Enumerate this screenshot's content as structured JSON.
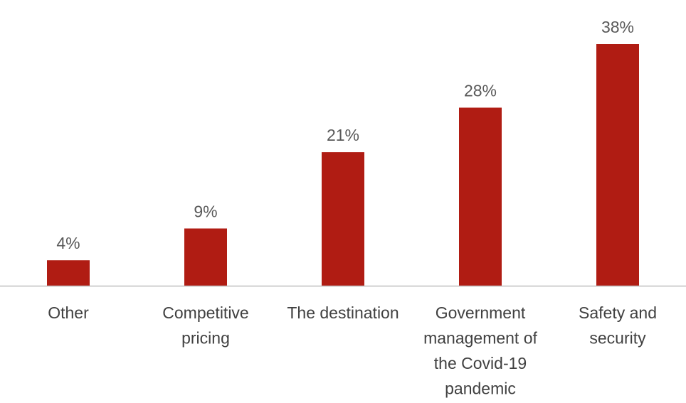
{
  "chart_data": {
    "type": "bar",
    "categories": [
      [
        "Other"
      ],
      [
        "Competitive",
        "pricing"
      ],
      [
        "The destination"
      ],
      [
        "Government",
        "management of",
        "the Covid-19",
        "pandemic"
      ],
      [
        "Safety and",
        "security"
      ]
    ],
    "values": [
      4,
      9,
      21,
      28,
      38
    ],
    "value_labels": [
      "4%",
      "9%",
      "21%",
      "28%",
      "38%"
    ],
    "unit": "%",
    "ylim": [
      0,
      38
    ],
    "bar_color": "#b01c13",
    "axis_color": "#bfbfbf",
    "grid": false,
    "legend": false
  }
}
